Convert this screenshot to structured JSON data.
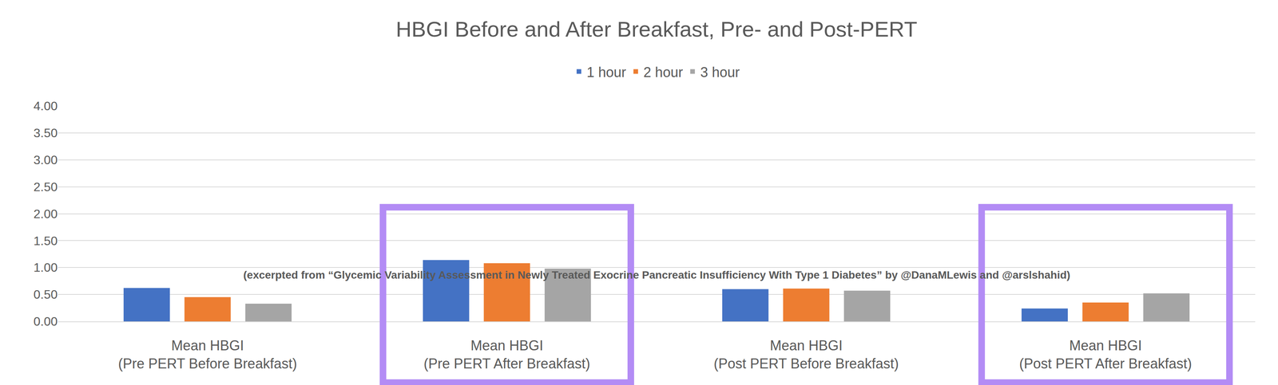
{
  "chart_data": {
    "type": "bar",
    "title": "HBGI Before and After Breakfast, Pre- and Post-PERT",
    "subtitle": "(excerpted from “Glycemic Variability Assessment in Newly Treated Exocrine Pancreatic Insufficiency With Type 1 Diabetes” by @DanaMLewis and @arslshahid)",
    "categories": [
      "Mean HBGI\n(Pre PERT Before Breakfast)",
      "Mean HBGI\n(Pre PERT After Breakfast)",
      "Mean HBGI\n(Post PERT Before Breakfast)",
      "Mean HBGI\n(Post PERT After Breakfast)"
    ],
    "series": [
      {
        "name": "1 hour",
        "color": "#4472c4",
        "values": [
          0.62,
          1.14,
          0.6,
          0.24
        ]
      },
      {
        "name": "2 hour",
        "color": "#ed7d31",
        "values": [
          0.45,
          1.08,
          0.61,
          0.35
        ]
      },
      {
        "name": "3 hour",
        "color": "#a5a5a5",
        "values": [
          0.33,
          0.98,
          0.57,
          0.52
        ]
      }
    ],
    "ylim": [
      0,
      4
    ],
    "yticks": [
      {
        "value": 0,
        "label": "0.00"
      },
      {
        "value": 0.5,
        "label": "0.50"
      },
      {
        "value": 1,
        "label": "1.00"
      },
      {
        "value": 1.5,
        "label": "1.50"
      },
      {
        "value": 2,
        "label": "2.00"
      },
      {
        "value": 2.5,
        "label": "2.50"
      },
      {
        "value": 3,
        "label": "3.00"
      },
      {
        "value": 3.5,
        "label": "3.50"
      },
      {
        "value": 4,
        "label": "4.00"
      }
    ],
    "grid": true,
    "legend": "top"
  }
}
